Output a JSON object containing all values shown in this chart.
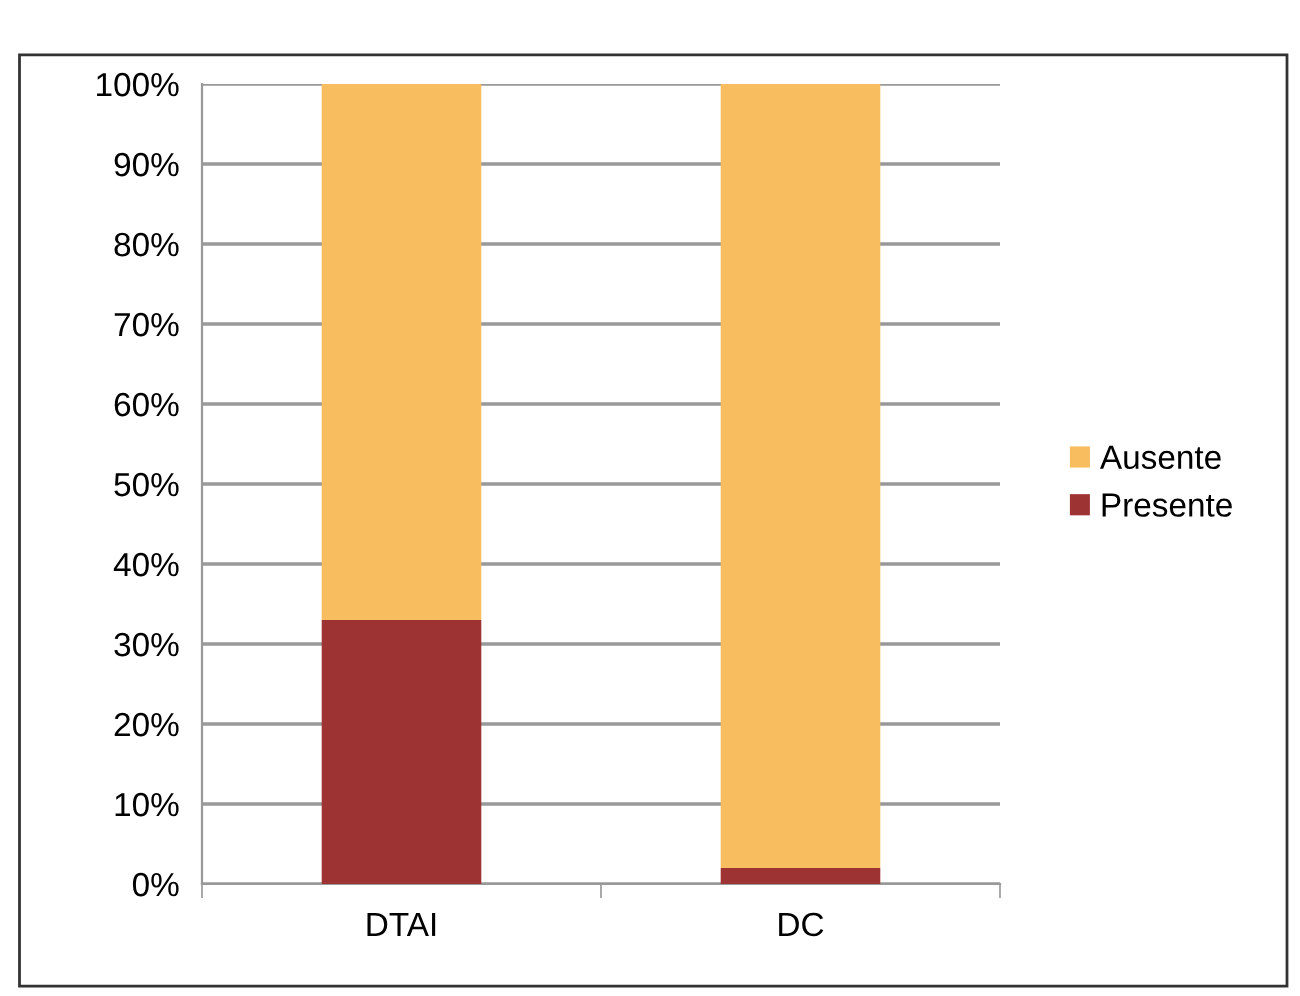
{
  "chart_data": {
    "type": "bar",
    "stacked": true,
    "categories": [
      "DTAI",
      "DC"
    ],
    "series": [
      {
        "name": "Presente",
        "color": "#9e3334",
        "values": [
          33,
          2
        ]
      },
      {
        "name": "Ausente",
        "color": "#f7bd5f",
        "values": [
          67,
          98
        ]
      }
    ],
    "ylim": [
      0,
      100
    ],
    "yticks": [
      {
        "value": 0,
        "label": "0%"
      },
      {
        "value": 10,
        "label": "10%"
      },
      {
        "value": 20,
        "label": "20%"
      },
      {
        "value": 30,
        "label": "30%"
      },
      {
        "value": 40,
        "label": "40%"
      },
      {
        "value": 50,
        "label": "50%"
      },
      {
        "value": 60,
        "label": "60%"
      },
      {
        "value": 70,
        "label": "70%"
      },
      {
        "value": 80,
        "label": "80%"
      },
      {
        "value": 90,
        "label": "90%"
      },
      {
        "value": 100,
        "label": "100%"
      }
    ],
    "grid": "y",
    "legend": "right"
  }
}
